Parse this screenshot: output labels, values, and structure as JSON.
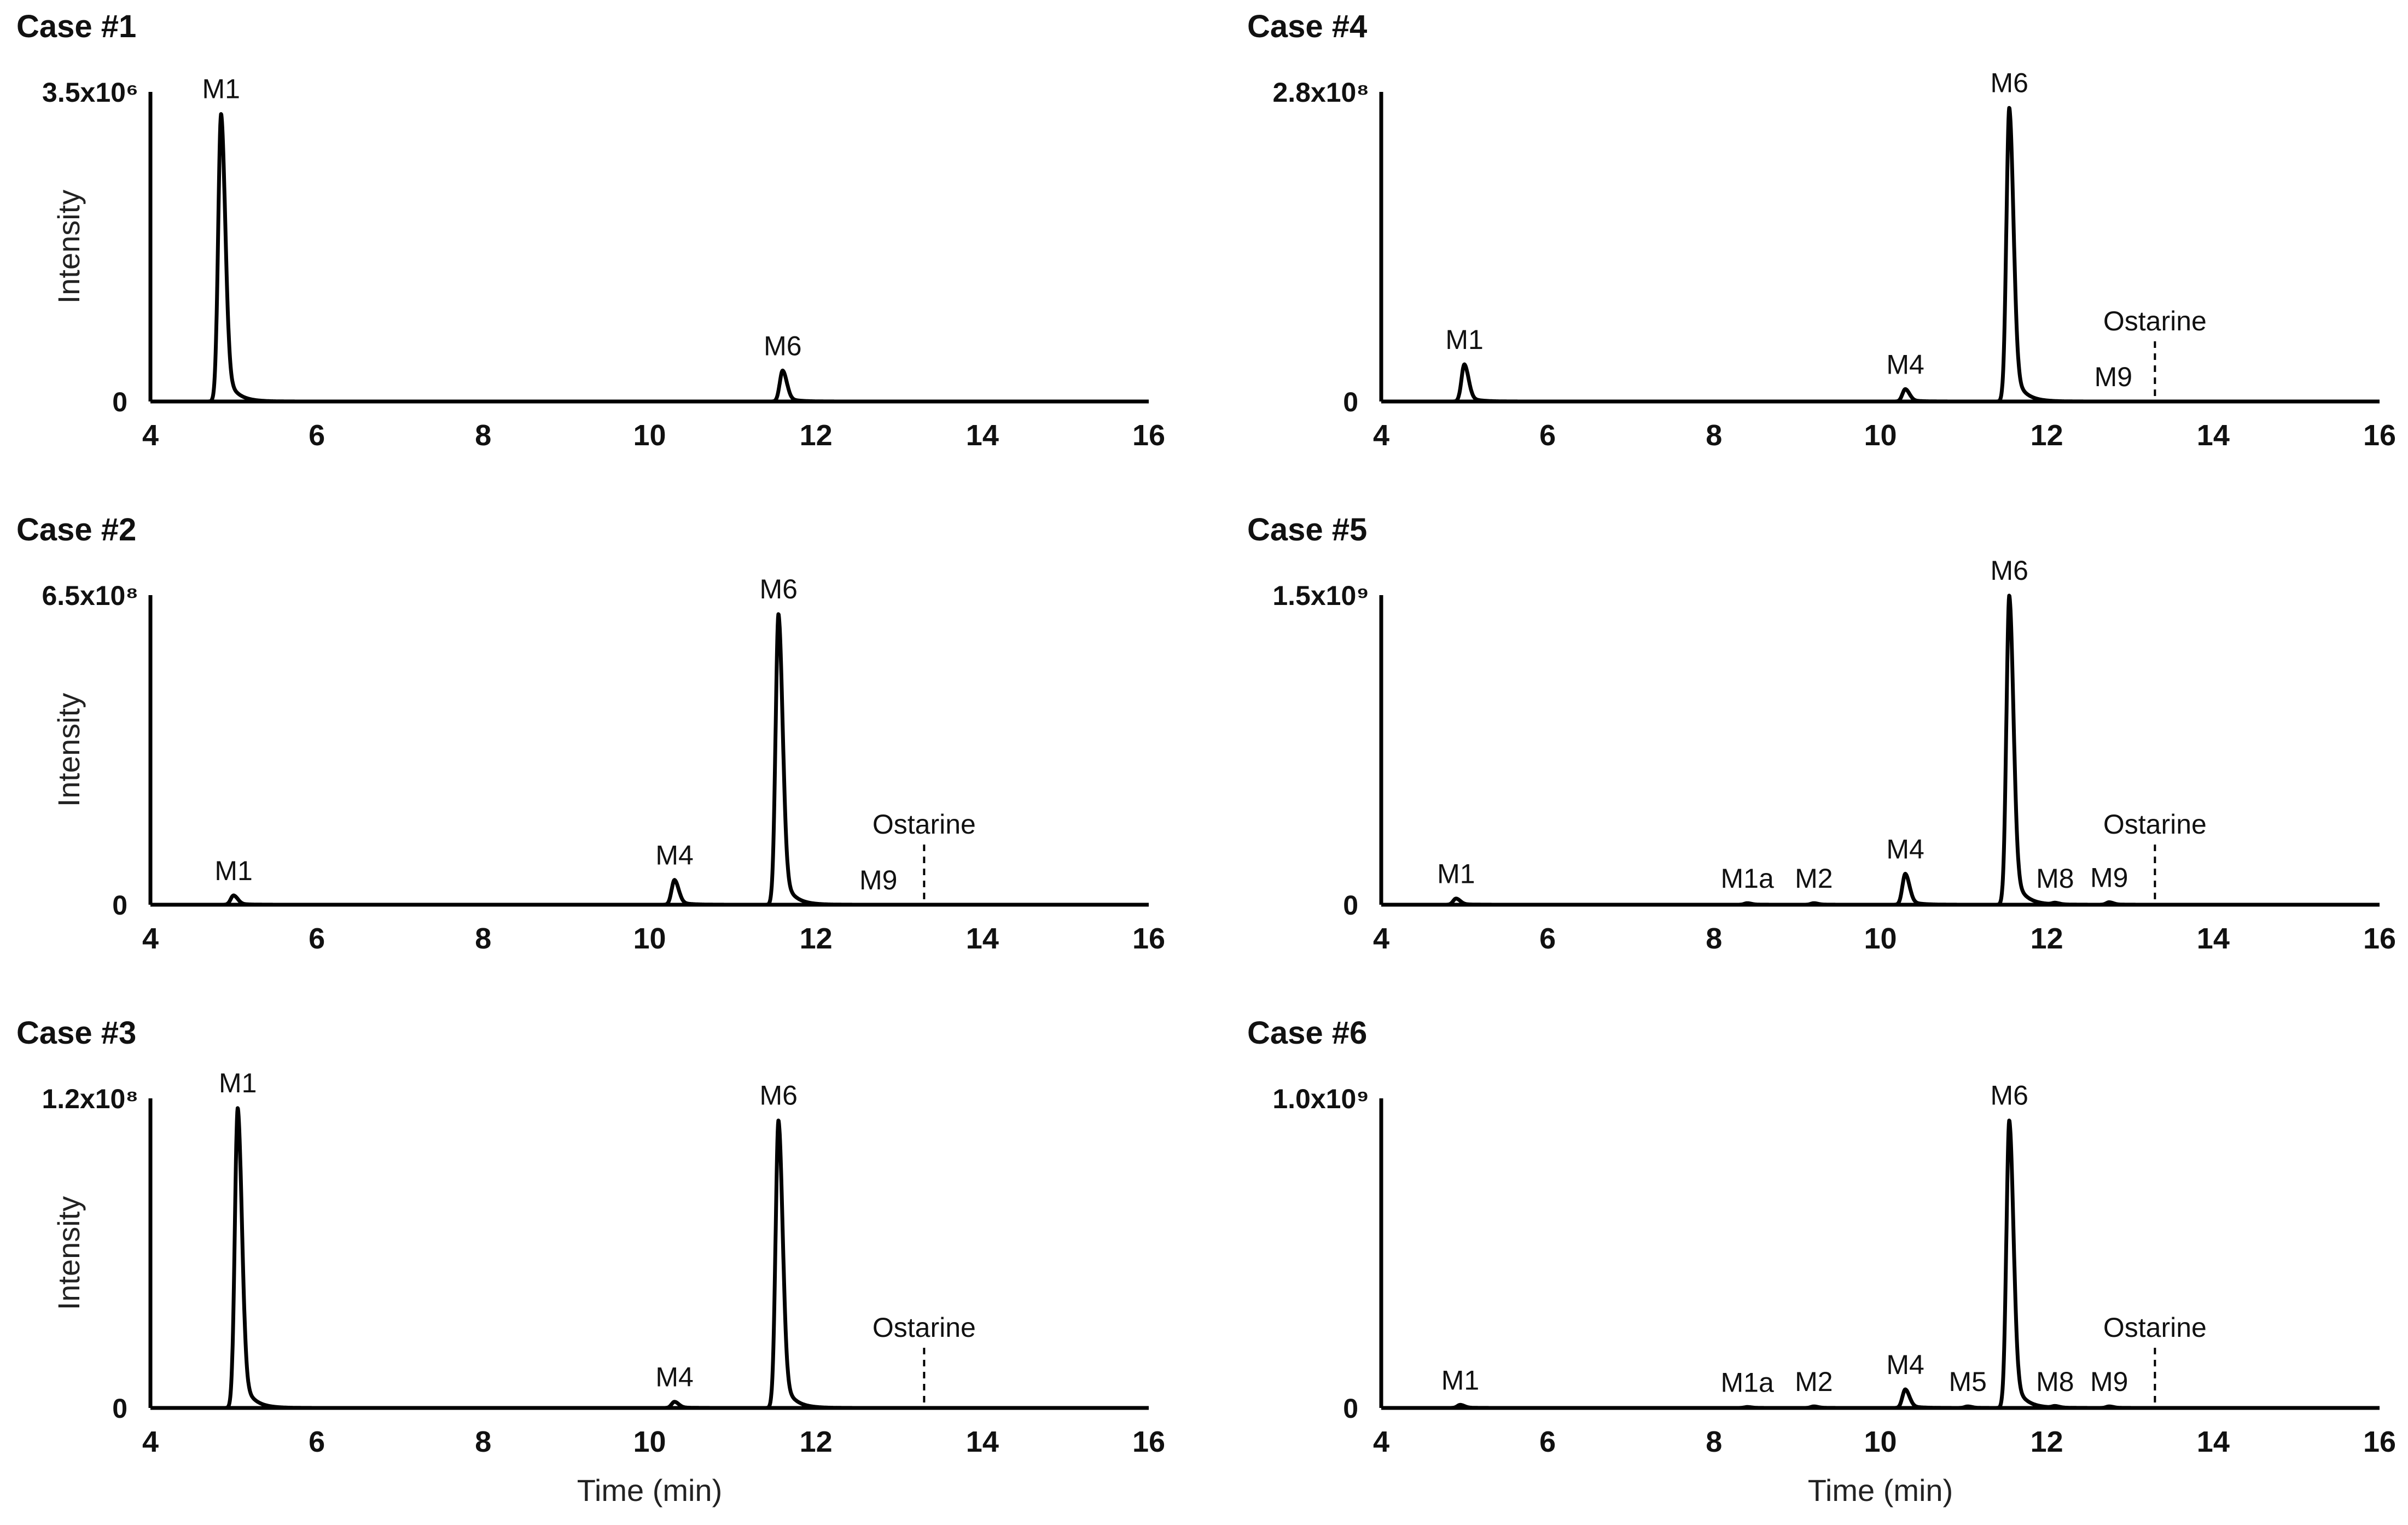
{
  "chart_data": [
    {
      "type": "line",
      "title": "Case #1",
      "ymax_label": "3.5x10⁶",
      "yzero_label": "0",
      "ylabel": "Intensity",
      "xlabel": "",
      "xlim": [
        4,
        16
      ],
      "ylim": [
        0,
        100
      ],
      "x_ticks": [
        "4",
        "6",
        "8",
        "10",
        "12",
        "14",
        "16"
      ],
      "peaks": [
        {
          "label": "M1",
          "time": 4.85,
          "height": 93
        },
        {
          "label": "M6",
          "time": 11.6,
          "height": 10
        }
      ],
      "marker": null
    },
    {
      "type": "line",
      "title": "Case #4",
      "ymax_label": "2.8x10⁸",
      "yzero_label": "0",
      "ylabel": "",
      "xlabel": "",
      "xlim": [
        4,
        16
      ],
      "ylim": [
        0,
        100
      ],
      "x_ticks": [
        "4",
        "6",
        "8",
        "10",
        "12",
        "14",
        "16"
      ],
      "peaks": [
        {
          "label": "M1",
          "time": 5.0,
          "height": 12
        },
        {
          "label": "M4",
          "time": 10.3,
          "height": 4
        },
        {
          "label": "M6",
          "time": 11.55,
          "height": 95
        },
        {
          "label": "M9",
          "time": 12.8,
          "height": 0
        }
      ],
      "marker": {
        "label": "Ostarine",
        "time": 13.3
      }
    },
    {
      "type": "line",
      "title": "Case #2",
      "ymax_label": "6.5x10⁸",
      "yzero_label": "0",
      "ylabel": "Intensity",
      "xlabel": "",
      "xlim": [
        4,
        16
      ],
      "ylim": [
        0,
        100
      ],
      "x_ticks": [
        "4",
        "6",
        "8",
        "10",
        "12",
        "14",
        "16"
      ],
      "peaks": [
        {
          "label": "M1",
          "time": 5.0,
          "height": 3
        },
        {
          "label": "M4",
          "time": 10.3,
          "height": 8
        },
        {
          "label": "M6",
          "time": 11.55,
          "height": 94
        },
        {
          "label": "M9",
          "time": 12.75,
          "height": 0
        }
      ],
      "marker": {
        "label": "Ostarine",
        "time": 13.3
      }
    },
    {
      "type": "line",
      "title": "Case #5",
      "ymax_label": "1.5x10⁹",
      "yzero_label": "0",
      "ylabel": "",
      "xlabel": "",
      "xlim": [
        4,
        16
      ],
      "ylim": [
        0,
        100
      ],
      "x_ticks": [
        "4",
        "6",
        "8",
        "10",
        "12",
        "14",
        "16"
      ],
      "peaks": [
        {
          "label": "M1",
          "time": 4.9,
          "height": 2
        },
        {
          "label": "M1a",
          "time": 8.4,
          "height": 0.5
        },
        {
          "label": "M2",
          "time": 9.2,
          "height": 0.5
        },
        {
          "label": "M4",
          "time": 10.3,
          "height": 10
        },
        {
          "label": "M6",
          "time": 11.55,
          "height": 100
        },
        {
          "label": "M8",
          "time": 12.1,
          "height": 0.5
        },
        {
          "label": "M9",
          "time": 12.75,
          "height": 0.8
        }
      ],
      "marker": {
        "label": "Ostarine",
        "time": 13.3
      }
    },
    {
      "type": "line",
      "title": "Case #3",
      "ymax_label": "1.2x10⁸",
      "yzero_label": "0",
      "ylabel": "Intensity",
      "xlabel": "Time (min)",
      "xlim": [
        4,
        16
      ],
      "ylim": [
        0,
        100
      ],
      "x_ticks": [
        "4",
        "6",
        "8",
        "10",
        "12",
        "14",
        "16"
      ],
      "peaks": [
        {
          "label": "M1",
          "time": 5.05,
          "height": 97
        },
        {
          "label": "M4",
          "time": 10.3,
          "height": 2
        },
        {
          "label": "M6",
          "time": 11.55,
          "height": 93
        }
      ],
      "marker": {
        "label": "Ostarine",
        "time": 13.3
      }
    },
    {
      "type": "line",
      "title": "Case #6",
      "ymax_label": "1.0x10⁹",
      "yzero_label": "0",
      "ylabel": "",
      "xlabel": "Time (min)",
      "xlim": [
        4,
        16
      ],
      "ylim": [
        0,
        100
      ],
      "x_ticks": [
        "4",
        "6",
        "8",
        "10",
        "12",
        "14",
        "16"
      ],
      "peaks": [
        {
          "label": "M1",
          "time": 4.95,
          "height": 1
        },
        {
          "label": "M1a",
          "time": 8.4,
          "height": 0.3
        },
        {
          "label": "M2",
          "time": 9.2,
          "height": 0.5
        },
        {
          "label": "M4",
          "time": 10.3,
          "height": 6
        },
        {
          "label": "M5",
          "time": 11.05,
          "height": 0.5
        },
        {
          "label": "M6",
          "time": 11.55,
          "height": 93
        },
        {
          "label": "M8",
          "time": 12.1,
          "height": 0.5
        },
        {
          "label": "M9",
          "time": 12.75,
          "height": 0.5
        }
      ],
      "marker": {
        "label": "Ostarine",
        "time": 13.3
      }
    }
  ]
}
